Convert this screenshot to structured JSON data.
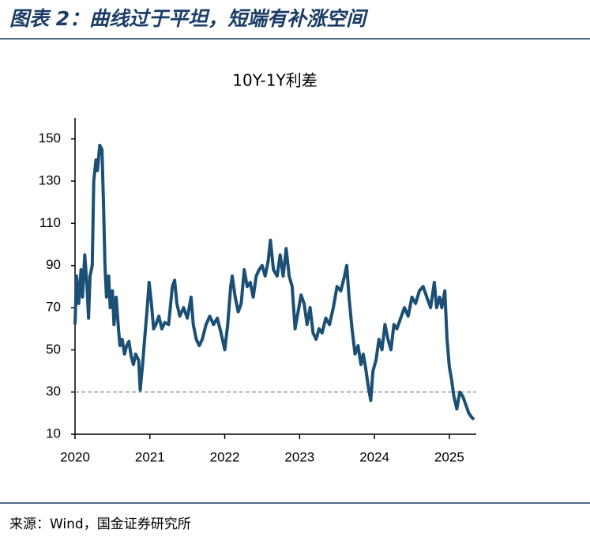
{
  "header": {
    "title": "图表 2：曲线过于平坦，短端有补涨空间"
  },
  "source": "来源：Wind，国金证券研究所",
  "chart_data": {
    "type": "line",
    "title": "10Y-1Y利差",
    "x": [
      2020.0,
      2020.02,
      2020.05,
      2020.08,
      2020.1,
      2020.13,
      2020.16,
      2020.18,
      2020.2,
      2020.23,
      2020.25,
      2020.28,
      2020.3,
      2020.33,
      2020.36,
      2020.38,
      2020.4,
      2020.42,
      2020.45,
      2020.47,
      2020.5,
      2020.52,
      2020.55,
      2020.58,
      2020.6,
      2020.63,
      2020.66,
      2020.69,
      2020.72,
      2020.75,
      2020.78,
      2020.81,
      2020.85,
      2020.87,
      2020.9,
      2020.93,
      2020.96,
      2020.99,
      2021.02,
      2021.05,
      2021.08,
      2021.12,
      2021.16,
      2021.2,
      2021.25,
      2021.3,
      2021.33,
      2021.36,
      2021.4,
      2021.45,
      2021.5,
      2021.55,
      2021.58,
      2021.62,
      2021.66,
      2021.7,
      2021.75,
      2021.8,
      2021.85,
      2021.9,
      2021.95,
      2022.0,
      2022.04,
      2022.08,
      2022.1,
      2022.14,
      2022.18,
      2022.22,
      2022.26,
      2022.3,
      2022.34,
      2022.38,
      2022.42,
      2022.46,
      2022.5,
      2022.54,
      2022.58,
      2022.61,
      2022.65,
      2022.7,
      2022.74,
      2022.78,
      2022.82,
      2022.86,
      2022.9,
      2022.94,
      2022.98,
      2023.02,
      2023.06,
      2023.1,
      2023.14,
      2023.18,
      2023.22,
      2023.26,
      2023.3,
      2023.35,
      2023.4,
      2023.45,
      2023.5,
      2023.55,
      2023.6,
      2023.63,
      2023.66,
      2023.7,
      2023.74,
      2023.78,
      2023.82,
      2023.85,
      2023.88,
      2023.92,
      2023.95,
      2023.98,
      2024.02,
      2024.06,
      2024.1,
      2024.14,
      2024.18,
      2024.22,
      2024.26,
      2024.3,
      2024.35,
      2024.4,
      2024.45,
      2024.5,
      2024.55,
      2024.6,
      2024.65,
      2024.7,
      2024.75,
      2024.8,
      2024.83,
      2024.87,
      2024.9,
      2024.94,
      2024.97,
      2025.0,
      2025.03,
      2025.06,
      2025.1,
      2025.14,
      2025.18,
      2025.22,
      2025.26,
      2025.3,
      2025.33
    ],
    "values": [
      62,
      85,
      72,
      88,
      75,
      95,
      80,
      65,
      85,
      90,
      130,
      140,
      135,
      147,
      145,
      120,
      90,
      75,
      85,
      70,
      78,
      62,
      75,
      60,
      52,
      55,
      48,
      52,
      54,
      47,
      43,
      48,
      45,
      31,
      42,
      55,
      68,
      82,
      72,
      60,
      62,
      66,
      60,
      63,
      62,
      80,
      83,
      72,
      66,
      70,
      65,
      75,
      62,
      55,
      52,
      55,
      62,
      66,
      62,
      65,
      58,
      50,
      62,
      80,
      85,
      75,
      68,
      72,
      88,
      80,
      82,
      75,
      85,
      88,
      90,
      85,
      92,
      102,
      88,
      85,
      95,
      85,
      98,
      85,
      80,
      60,
      68,
      76,
      72,
      62,
      70,
      58,
      55,
      60,
      58,
      65,
      62,
      70,
      80,
      78,
      85,
      90,
      75,
      60,
      48,
      52,
      43,
      48,
      42,
      32,
      26,
      40,
      45,
      55,
      50,
      62,
      55,
      50,
      62,
      60,
      65,
      70,
      66,
      75,
      72,
      78,
      80,
      75,
      70,
      82,
      70,
      75,
      70,
      78,
      55,
      42,
      36,
      28,
      22,
      30,
      28,
      24,
      20,
      18,
      17
    ],
    "color": "#1b4f75",
    "xlim": [
      2020,
      2025.36
    ],
    "xticks": [
      2020,
      2021,
      2022,
      2023,
      2024,
      2025
    ],
    "ylim": [
      10,
      160
    ],
    "yticks": [
      10,
      30,
      50,
      70,
      90,
      110,
      130,
      150
    ],
    "reference_line": 30
  }
}
